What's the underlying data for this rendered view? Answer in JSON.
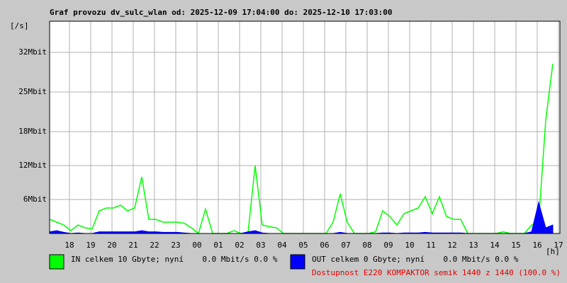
{
  "chart_data": {
    "type": "line",
    "title": "Graf provozu dv_sulc_wlan od: 2025-12-09 17:04:00 do: 2025-12-10 17:03:00",
    "y_label": "[/s]",
    "x_label": "[h]",
    "x": [
      0,
      20,
      40,
      60,
      80,
      100,
      120,
      140,
      160,
      180,
      200,
      220,
      240,
      260,
      280,
      300,
      320,
      340,
      360,
      380,
      400,
      420,
      440,
      460,
      480,
      500,
      520,
      540,
      560,
      580,
      600,
      620,
      640,
      660,
      680,
      700,
      720,
      740,
      760,
      780,
      800,
      820,
      840,
      860,
      880,
      900,
      920,
      940,
      960,
      980,
      1000,
      1020,
      1040,
      1060,
      1080,
      1100,
      1120,
      1140,
      1160,
      1180,
      1200,
      1220,
      1240,
      1260,
      1280,
      1300,
      1320,
      1340,
      1360,
      1380,
      1400,
      1420
    ],
    "series": [
      {
        "name": "IN celkem 10 Gbyte; nyní    0.0 Mbit/s 0.0 %",
        "color": "#00ff00",
        "fill": false,
        "values": [
          2.5,
          2.0,
          1.5,
          0.5,
          1.5,
          1.0,
          0.8,
          4.0,
          4.5,
          4.5,
          5.0,
          4.0,
          4.5,
          10.0,
          2.5,
          2.5,
          2.0,
          2.0,
          2.0,
          1.8,
          1.0,
          0,
          4.3,
          0,
          0,
          0,
          0.5,
          0,
          0.2,
          12.0,
          1.5,
          1.2,
          1.0,
          0,
          0,
          0,
          0,
          0,
          0,
          0,
          2.0,
          7.0,
          2.0,
          0,
          0,
          0,
          0.3,
          4.0,
          3.0,
          1.5,
          3.5,
          4.0,
          4.5,
          6.5,
          3.5,
          6.5,
          3.0,
          2.5,
          2.5,
          0,
          0,
          0,
          0,
          0,
          0.3,
          0,
          0,
          0,
          1.5,
          2.0,
          20.0,
          30.0
        ]
      },
      {
        "name": "OUT celkem 0 Gbyte; nyní    0.0 Mbit/s 0.0 %",
        "color": "#0000ff",
        "fill": true,
        "values": [
          0.3,
          0.5,
          0.2,
          0,
          0.1,
          0,
          0,
          0.3,
          0.3,
          0.3,
          0.3,
          0.3,
          0.3,
          0.5,
          0.3,
          0.3,
          0.2,
          0.2,
          0.2,
          0.1,
          0,
          0,
          0,
          0,
          0,
          0,
          0,
          0,
          0.3,
          0.5,
          0.1,
          0,
          0,
          0,
          0,
          0,
          0,
          0,
          0,
          0,
          0,
          0.2,
          0,
          0,
          0,
          0,
          0,
          0.1,
          0.1,
          0,
          0.1,
          0.1,
          0.1,
          0.2,
          0.1,
          0.1,
          0.1,
          0.1,
          0.1,
          0,
          0,
          0,
          0,
          0,
          0,
          0,
          0,
          0,
          0.3,
          5.5,
          1.0,
          1.5
        ]
      }
    ],
    "availability": "Dostupnost E220 KOMPAKTOR semik 1440 z 1440 (100.0 %)",
    "xlim": [
      0,
      1440
    ],
    "xticks": [
      {
        "value": 56,
        "label": "18"
      },
      {
        "value": 116,
        "label": "19"
      },
      {
        "value": 176,
        "label": "20"
      },
      {
        "value": 236,
        "label": "21"
      },
      {
        "value": 296,
        "label": "22"
      },
      {
        "value": 356,
        "label": "23"
      },
      {
        "value": 416,
        "label": "00"
      },
      {
        "value": 476,
        "label": "01"
      },
      {
        "value": 536,
        "label": "02"
      },
      {
        "value": 596,
        "label": "03"
      },
      {
        "value": 656,
        "label": "04"
      },
      {
        "value": 716,
        "label": "05"
      },
      {
        "value": 776,
        "label": "06"
      },
      {
        "value": 836,
        "label": "07"
      },
      {
        "value": 896,
        "label": "08"
      },
      {
        "value": 956,
        "label": "09"
      },
      {
        "value": 1016,
        "label": "10"
      },
      {
        "value": 1076,
        "label": "11"
      },
      {
        "value": 1136,
        "label": "12"
      },
      {
        "value": 1196,
        "label": "13"
      },
      {
        "value": 1256,
        "label": "14"
      },
      {
        "value": 1316,
        "label": "15"
      },
      {
        "value": 1376,
        "label": "16"
      },
      {
        "value": 1436,
        "label": "17"
      }
    ],
    "ylim": [
      0,
      37.5
    ],
    "yticks": [
      {
        "value": 6,
        "label": "6Mbit"
      },
      {
        "value": 12,
        "label": "12Mbit"
      },
      {
        "value": 18,
        "label": "18Mbit"
      },
      {
        "value": 25,
        "label": "25Mbit"
      },
      {
        "value": 32,
        "label": "32Mbit"
      }
    ],
    "grid": true
  }
}
